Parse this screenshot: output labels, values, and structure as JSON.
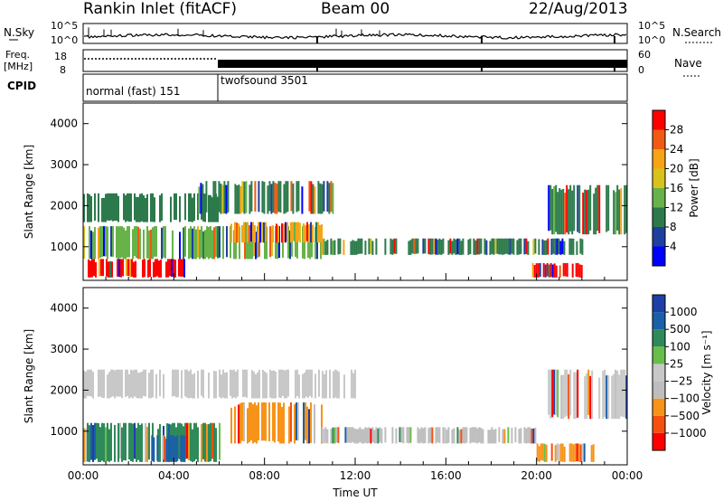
{
  "header": {
    "station": "Rankin Inlet (fitACF)",
    "beam": "Beam 00",
    "date": "22/Aug/2013"
  },
  "strip_panels": {
    "nsky": {
      "label": "N.Sky",
      "ticks": [
        "10^5",
        "10^0"
      ]
    },
    "nsearch": {
      "label": "N.Search",
      "ticks": [
        "10^5",
        "10^0"
      ]
    },
    "freq": {
      "label_top": "Freq.",
      "label_unit": "[MHz]",
      "ticks": [
        "18",
        "8"
      ]
    },
    "nave": {
      "label": "Nave",
      "ticks": [
        "60",
        "0"
      ]
    },
    "cpid": {
      "label": "CPID",
      "modes": [
        {
          "name": "normal (fast) 151",
          "start_hour": 0,
          "end_hour": 6
        },
        {
          "name": "twofsound 3501",
          "start_hour": 6,
          "end_hour": 24
        }
      ]
    }
  },
  "chart_data": [
    {
      "type": "heatmap",
      "title": "",
      "xlabel": "",
      "ylabel": "Slant Range [km]",
      "xlim": [
        0,
        24
      ],
      "ylim": [
        180,
        4500
      ],
      "x_tick_labels": [
        "00:00",
        "04:00",
        "08:00",
        "12:00",
        "16:00",
        "20:00",
        "00:00"
      ],
      "y_ticks": [
        1000,
        2000,
        3000,
        4000
      ],
      "colorbar": {
        "label": "Power [dB]",
        "ticks": [
          "28",
          "24",
          "20",
          "16",
          "12",
          "8",
          "4"
        ],
        "colors": [
          "#0000ff",
          "#1f3f9f",
          "#2c7a4b",
          "#67b34a",
          "#d9c21c",
          "#f7a316",
          "#f05a12",
          "#ff0000"
        ]
      },
      "regions": [
        {
          "start_hour": 0.0,
          "end_hour": 6.0,
          "range_min_km": 1600,
          "range_max_km": 2300,
          "power_db": 10
        },
        {
          "start_hour": 0.2,
          "end_hour": 4.5,
          "range_min_km": 250,
          "range_max_km": 700,
          "power_db": 28
        },
        {
          "start_hour": 0.0,
          "end_hour": 10.5,
          "range_min_km": 700,
          "range_max_km": 1500,
          "power_db": 12
        },
        {
          "start_hour": 6.5,
          "end_hour": 10.5,
          "range_min_km": 1100,
          "range_max_km": 1600,
          "power_db": 22
        },
        {
          "start_hour": 5.0,
          "end_hour": 11.0,
          "range_min_km": 1800,
          "range_max_km": 2600,
          "power_db": 10
        },
        {
          "start_hour": 10.5,
          "end_hour": 22.0,
          "range_min_km": 800,
          "range_max_km": 1200,
          "power_db": 9
        },
        {
          "start_hour": 19.8,
          "end_hour": 22.0,
          "range_min_km": 250,
          "range_max_km": 600,
          "power_db": 28
        },
        {
          "start_hour": 20.5,
          "end_hour": 24.0,
          "range_min_km": 1300,
          "range_max_km": 2500,
          "power_db": 8
        }
      ]
    },
    {
      "type": "heatmap",
      "title": "",
      "xlabel": "Time UT",
      "ylabel": "Slant Range [km]",
      "xlim": [
        0,
        24
      ],
      "ylim": [
        180,
        4500
      ],
      "x_tick_labels": [
        "00:00",
        "04:00",
        "08:00",
        "12:00",
        "16:00",
        "20:00",
        "00:00"
      ],
      "y_ticks": [
        1000,
        2000,
        3000,
        4000
      ],
      "colorbar": {
        "label": "Velocity [m s⁻¹]",
        "ticks": [
          "1000",
          "500",
          "100",
          "25",
          "−25",
          "−100",
          "−500",
          "−1000"
        ],
        "colors": [
          "#ff0000",
          "#f5500f",
          "#f79318",
          "#bdbdbd",
          "#c8c8c8",
          "#67bf4a",
          "#2e8a5a",
          "#1a5fa8",
          "#1e3fa6"
        ]
      },
      "regions": [
        {
          "start_hour": 0.0,
          "end_hour": 12.0,
          "range_min_km": 1800,
          "range_max_km": 2500,
          "velocity_ms": 0
        },
        {
          "start_hour": 0.0,
          "end_hour": 6.0,
          "range_min_km": 250,
          "range_max_km": 1200,
          "velocity_ms": 200
        },
        {
          "start_hour": 3.0,
          "end_hour": 4.5,
          "range_min_km": 250,
          "range_max_km": 900,
          "velocity_ms": 800
        },
        {
          "start_hour": 6.5,
          "end_hour": 10.5,
          "range_min_km": 700,
          "range_max_km": 1700,
          "velocity_ms": -300
        },
        {
          "start_hour": 10.5,
          "end_hour": 20.0,
          "range_min_km": 700,
          "range_max_km": 1100,
          "velocity_ms": -60
        },
        {
          "start_hour": 20.0,
          "end_hour": 22.5,
          "range_min_km": 250,
          "range_max_km": 700,
          "velocity_ms": -200
        },
        {
          "start_hour": 20.5,
          "end_hour": 24.0,
          "range_min_km": 1300,
          "range_max_km": 2500,
          "velocity_ms": 0
        }
      ]
    }
  ]
}
